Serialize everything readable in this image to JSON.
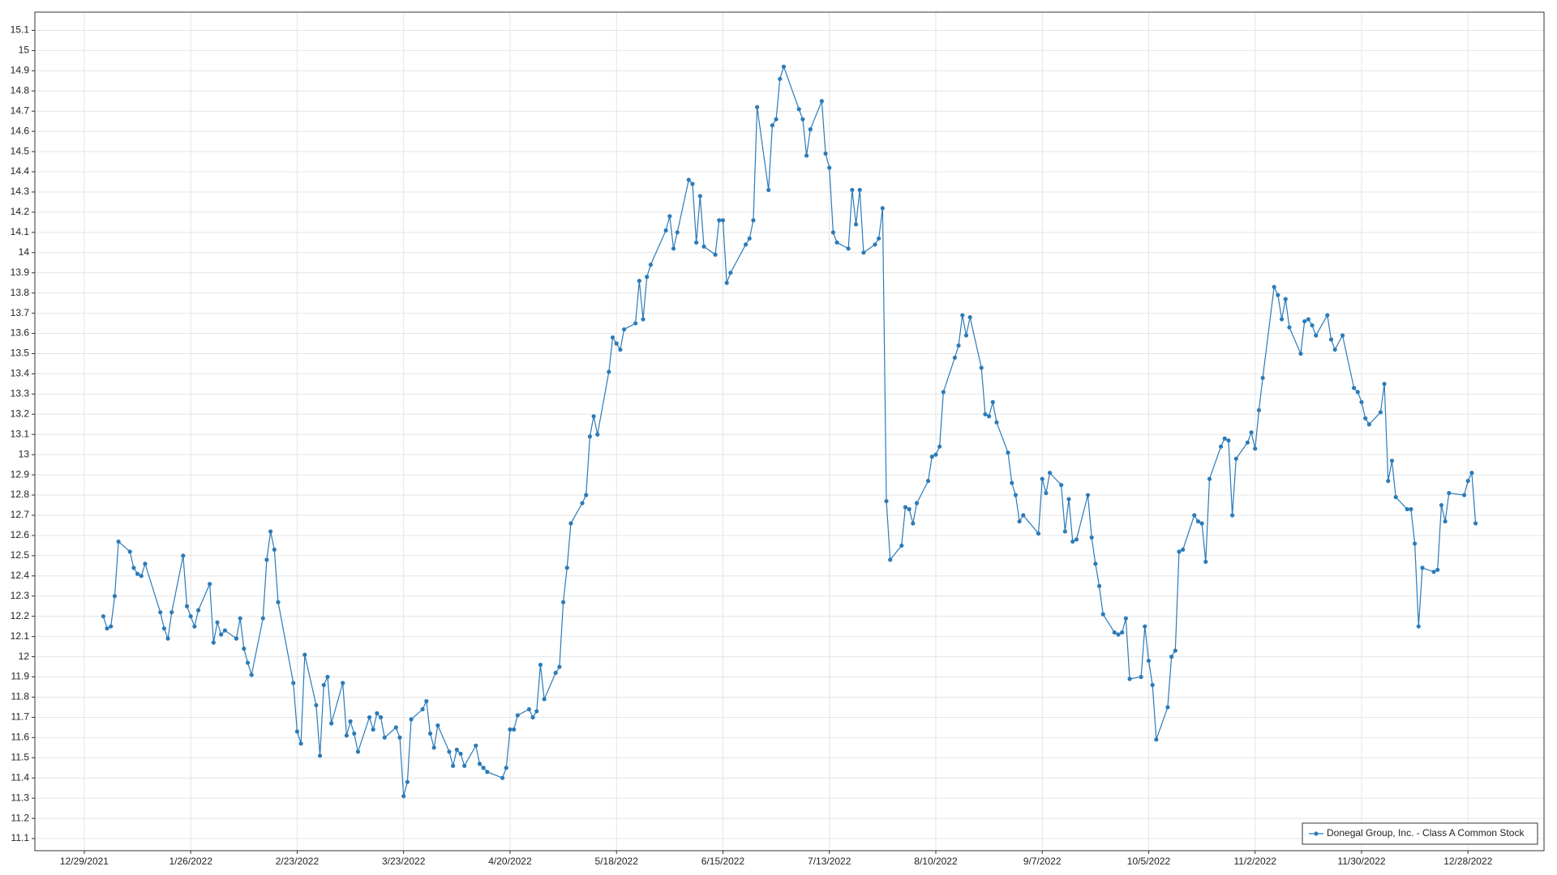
{
  "chart_data": {
    "type": "line",
    "x": [
      "1/3/2022",
      "1/4/2022",
      "1/5/2022",
      "1/6/2022",
      "1/7/2022",
      "1/10/2022",
      "1/11/2022",
      "1/12/2022",
      "1/13/2022",
      "1/14/2022",
      "1/18/2022",
      "1/19/2022",
      "1/20/2022",
      "1/21/2022",
      "1/24/2022",
      "1/25/2022",
      "1/26/2022",
      "1/27/2022",
      "1/28/2022",
      "1/31/2022",
      "2/1/2022",
      "2/2/2022",
      "2/3/2022",
      "2/4/2022",
      "2/7/2022",
      "2/8/2022",
      "2/9/2022",
      "2/10/2022",
      "2/11/2022",
      "2/14/2022",
      "2/15/2022",
      "2/16/2022",
      "2/17/2022",
      "2/18/2022",
      "2/22/2022",
      "2/23/2022",
      "2/24/2022",
      "2/25/2022",
      "2/28/2022",
      "3/1/2022",
      "3/2/2022",
      "3/3/2022",
      "3/4/2022",
      "3/7/2022",
      "3/8/2022",
      "3/9/2022",
      "3/10/2022",
      "3/11/2022",
      "3/14/2022",
      "3/15/2022",
      "3/16/2022",
      "3/17/2022",
      "3/18/2022",
      "3/21/2022",
      "3/22/2022",
      "3/23/2022",
      "3/24/2022",
      "3/25/2022",
      "3/28/2022",
      "3/29/2022",
      "3/30/2022",
      "3/31/2022",
      "4/1/2022",
      "4/4/2022",
      "4/5/2022",
      "4/6/2022",
      "4/7/2022",
      "4/8/2022",
      "4/11/2022",
      "4/12/2022",
      "4/13/2022",
      "4/14/2022",
      "4/18/2022",
      "4/19/2022",
      "4/20/2022",
      "4/21/2022",
      "4/22/2022",
      "4/25/2022",
      "4/26/2022",
      "4/27/2022",
      "4/28/2022",
      "4/29/2022",
      "5/2/2022",
      "5/3/2022",
      "5/4/2022",
      "5/5/2022",
      "5/6/2022",
      "5/9/2022",
      "5/10/2022",
      "5/11/2022",
      "5/12/2022",
      "5/13/2022",
      "5/16/2022",
      "5/17/2022",
      "5/18/2022",
      "5/19/2022",
      "5/20/2022",
      "5/23/2022",
      "5/24/2022",
      "5/25/2022",
      "5/26/2022",
      "5/27/2022",
      "5/31/2022",
      "6/1/2022",
      "6/2/2022",
      "6/3/2022",
      "6/6/2022",
      "6/7/2022",
      "6/8/2022",
      "6/9/2022",
      "6/10/2022",
      "6/13/2022",
      "6/14/2022",
      "6/15/2022",
      "6/16/2022",
      "6/17/2022",
      "6/21/2022",
      "6/22/2022",
      "6/23/2022",
      "6/24/2022",
      "6/27/2022",
      "6/28/2022",
      "6/29/2022",
      "6/30/2022",
      "7/1/2022",
      "7/5/2022",
      "7/6/2022",
      "7/7/2022",
      "7/8/2022",
      "7/11/2022",
      "7/12/2022",
      "7/13/2022",
      "7/14/2022",
      "7/15/2022",
      "7/18/2022",
      "7/19/2022",
      "7/20/2022",
      "7/21/2022",
      "7/22/2022",
      "7/25/2022",
      "7/26/2022",
      "7/27/2022",
      "7/28/2022",
      "7/29/2022",
      "8/1/2022",
      "8/2/2022",
      "8/3/2022",
      "8/4/2022",
      "8/5/2022",
      "8/8/2022",
      "8/9/2022",
      "8/10/2022",
      "8/11/2022",
      "8/12/2022",
      "8/15/2022",
      "8/16/2022",
      "8/17/2022",
      "8/18/2022",
      "8/19/2022",
      "8/22/2022",
      "8/23/2022",
      "8/24/2022",
      "8/25/2022",
      "8/26/2022",
      "8/29/2022",
      "8/30/2022",
      "8/31/2022",
      "9/1/2022",
      "9/2/2022",
      "9/6/2022",
      "9/7/2022",
      "9/8/2022",
      "9/9/2022",
      "9/12/2022",
      "9/13/2022",
      "9/14/2022",
      "9/15/2022",
      "9/16/2022",
      "9/19/2022",
      "9/20/2022",
      "9/21/2022",
      "9/22/2022",
      "9/23/2022",
      "9/26/2022",
      "9/27/2022",
      "9/28/2022",
      "9/29/2022",
      "9/30/2022",
      "10/3/2022",
      "10/4/2022",
      "10/5/2022",
      "10/6/2022",
      "10/7/2022",
      "10/10/2022",
      "10/11/2022",
      "10/12/2022",
      "10/13/2022",
      "10/14/2022",
      "10/17/2022",
      "10/18/2022",
      "10/19/2022",
      "10/20/2022",
      "10/21/2022",
      "10/24/2022",
      "10/25/2022",
      "10/26/2022",
      "10/27/2022",
      "10/28/2022",
      "10/31/2022",
      "11/1/2022",
      "11/2/2022",
      "11/3/2022",
      "11/4/2022",
      "11/7/2022",
      "11/8/2022",
      "11/9/2022",
      "11/10/2022",
      "11/11/2022",
      "11/14/2022",
      "11/15/2022",
      "11/16/2022",
      "11/17/2022",
      "11/18/2022",
      "11/21/2022",
      "11/22/2022",
      "11/23/2022",
      "11/25/2022",
      "11/28/2022",
      "11/29/2022",
      "11/30/2022",
      "12/1/2022",
      "12/2/2022",
      "12/5/2022",
      "12/6/2022",
      "12/7/2022",
      "12/8/2022",
      "12/9/2022",
      "12/12/2022",
      "12/13/2022",
      "12/14/2022",
      "12/15/2022",
      "12/16/2022",
      "12/19/2022",
      "12/20/2022",
      "12/21/2022",
      "12/22/2022",
      "12/23/2022",
      "12/27/2022",
      "12/28/2022",
      "12/29/2022",
      "12/30/2022"
    ],
    "series": [
      {
        "name": "Donegal Group, Inc. - Class A Common Stock",
        "color": "#2b7bb9",
        "values": [
          12.2,
          12.14,
          12.15,
          12.3,
          12.57,
          12.52,
          12.44,
          12.41,
          12.4,
          12.46,
          12.22,
          12.14,
          12.09,
          12.22,
          12.5,
          12.25,
          12.2,
          12.15,
          12.23,
          12.36,
          12.07,
          12.17,
          12.11,
          12.13,
          12.09,
          12.19,
          12.04,
          11.97,
          11.91,
          12.19,
          12.48,
          12.62,
          12.53,
          12.27,
          11.87,
          11.63,
          11.57,
          12.01,
          11.76,
          11.51,
          11.86,
          11.9,
          11.67,
          11.87,
          11.61,
          11.68,
          11.62,
          11.53,
          11.7,
          11.64,
          11.72,
          11.7,
          11.6,
          11.65,
          11.6,
          11.31,
          11.38,
          11.69,
          11.74,
          11.78,
          11.62,
          11.55,
          11.66,
          11.53,
          11.46,
          11.54,
          11.52,
          11.46,
          11.56,
          11.47,
          11.45,
          11.43,
          11.4,
          11.45,
          11.64,
          11.64,
          11.71,
          11.74,
          11.7,
          11.73,
          11.96,
          11.79,
          11.92,
          11.95,
          12.27,
          12.44,
          12.66,
          12.76,
          12.8,
          13.09,
          13.19,
          13.1,
          13.41,
          13.58,
          13.55,
          13.52,
          13.62,
          13.65,
          13.86,
          13.67,
          13.88,
          13.94,
          14.11,
          14.18,
          14.02,
          14.1,
          14.36,
          14.34,
          14.05,
          14.28,
          14.03,
          13.99,
          14.16,
          14.16,
          13.85,
          13.9,
          14.04,
          14.07,
          14.16,
          14.72,
          14.31,
          14.63,
          14.66,
          14.86,
          14.92,
          14.71,
          14.66,
          14.48,
          14.61,
          14.75,
          14.49,
          14.42,
          14.1,
          14.05,
          14.02,
          14.31,
          14.14,
          14.31,
          14.0,
          14.04,
          14.07,
          14.22,
          12.77,
          12.48,
          12.55,
          12.74,
          12.73,
          12.66,
          12.76,
          12.87,
          12.99,
          13.0,
          13.04,
          13.31,
          13.48,
          13.54,
          13.69,
          13.59,
          13.68,
          13.43,
          13.2,
          13.19,
          13.26,
          13.16,
          13.01,
          12.86,
          12.8,
          12.67,
          12.7,
          12.61,
          12.88,
          12.81,
          12.91,
          12.85,
          12.62,
          12.78,
          12.57,
          12.58,
          12.8,
          12.59,
          12.46,
          12.35,
          12.21,
          12.12,
          12.11,
          12.12,
          12.19,
          11.89,
          11.9,
          12.15,
          11.98,
          11.86,
          11.59,
          11.75,
          12.0,
          12.03,
          12.52,
          12.53,
          12.7,
          12.67,
          12.66,
          12.47,
          12.88,
          13.04,
          13.08,
          13.07,
          12.7,
          12.98,
          13.06,
          13.11,
          13.03,
          13.22,
          13.38,
          13.83,
          13.79,
          13.67,
          13.77,
          13.63,
          13.5,
          13.66,
          13.67,
          13.64,
          13.59,
          13.69,
          13.57,
          13.52,
          13.59,
          13.33,
          13.31,
          13.26,
          13.18,
          13.15,
          13.21,
          13.35,
          12.87,
          12.97,
          12.79,
          12.73,
          12.73,
          12.56,
          12.15,
          12.44,
          12.42,
          12.43,
          12.75,
          12.67,
          12.81,
          12.8,
          12.87,
          12.91,
          12.66
        ]
      }
    ],
    "xlim": [
      "12/16/2021",
      "1/17/2023"
    ],
    "xticks": [
      "12/29/2021",
      "1/26/2022",
      "2/23/2022",
      "3/23/2022",
      "4/20/2022",
      "5/18/2022",
      "6/15/2022",
      "7/13/2022",
      "8/10/2022",
      "9/7/2022",
      "10/5/2022",
      "11/2/2022",
      "11/30/2022",
      "12/28/2022"
    ],
    "ylim": [
      11.04,
      15.19
    ],
    "yticks": [
      11.1,
      11.2,
      11.3,
      11.4,
      11.5,
      11.6,
      11.7,
      11.8,
      11.9,
      12,
      12.1,
      12.2,
      12.3,
      12.4,
      12.5,
      12.6,
      12.7,
      12.8,
      12.9,
      13,
      13.1,
      13.2,
      13.3,
      13.4,
      13.5,
      13.6,
      13.7,
      13.8,
      13.9,
      14,
      14.1,
      14.2,
      14.3,
      14.4,
      14.5,
      14.6,
      14.7,
      14.8,
      14.9,
      15,
      15.1
    ],
    "grid": true,
    "legend": "lower right"
  }
}
